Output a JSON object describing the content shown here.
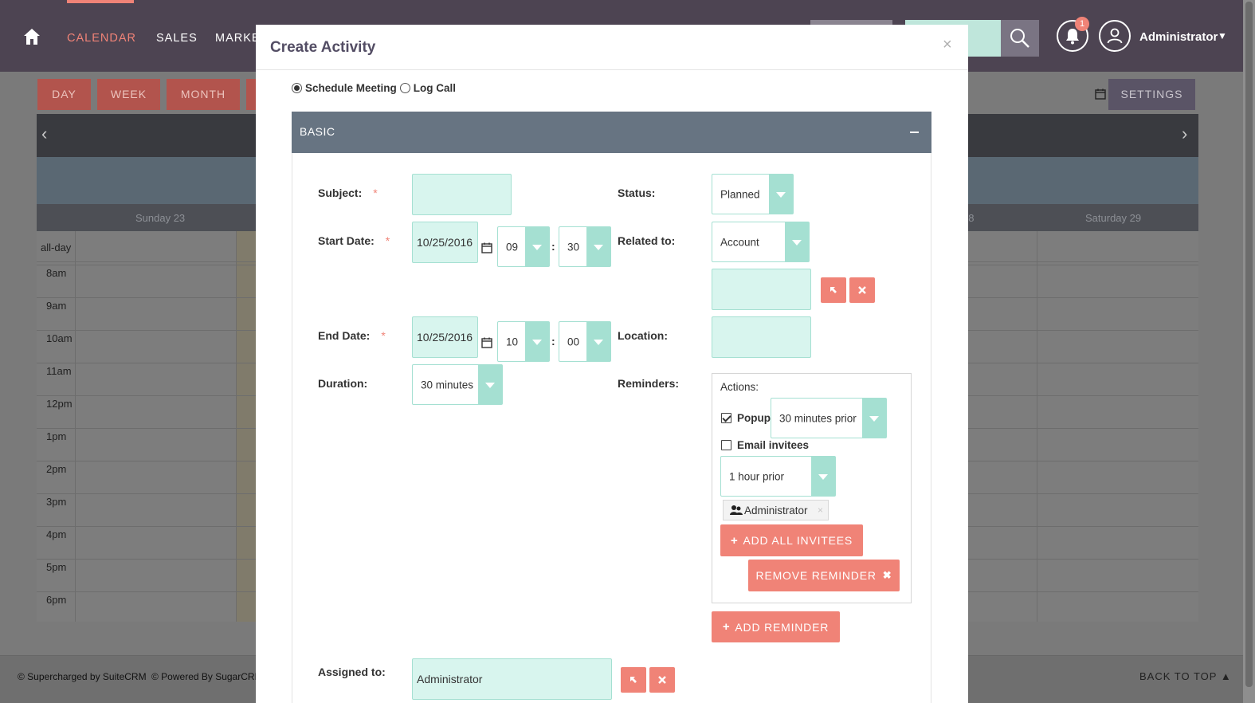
{
  "nav": {
    "items": [
      "CALENDAR",
      "SALES",
      "MARKE"
    ],
    "user": "Administrator",
    "notification_count": "1"
  },
  "calendar": {
    "views": [
      "DAY",
      "WEEK",
      "MONTH"
    ],
    "settings_label": "SETTINGS",
    "days": [
      "Sunday 23",
      "28",
      "Saturday 29"
    ],
    "allday_label": "all-day",
    "hours": [
      "8am",
      "9am",
      "10am",
      "11am",
      "12pm",
      "1pm",
      "2pm",
      "3pm",
      "4pm",
      "5pm",
      "6pm"
    ]
  },
  "footer": {
    "supercharged": "© Supercharged by SuiteCRM",
    "powered": "© Powered By SugarCRM",
    "back_to_top": "BACK TO TOP"
  },
  "modal": {
    "title": "Create Activity",
    "close": "×",
    "radio_meeting": "Schedule Meeting",
    "radio_call": "Log Call",
    "panel_title": "BASIC",
    "labels": {
      "subject": "Subject:",
      "start_date": "Start Date:",
      "end_date": "End Date:",
      "duration": "Duration:",
      "status": "Status:",
      "related_to": "Related to:",
      "location": "Location:",
      "reminders": "Reminders:",
      "assigned_to": "Assigned to:"
    },
    "required_mark": "*",
    "subject_value": "",
    "start_date_value": "10/25/2016",
    "start_hour": "09",
    "start_minute": "30",
    "end_date_value": "10/25/2016",
    "end_hour": "10",
    "end_minute": "00",
    "time_sep": ":",
    "duration_value": "30 minutes",
    "status_value": "Planned",
    "related_type": "Account",
    "related_value": "",
    "location_value": "",
    "reminder": {
      "actions_label": "Actions:",
      "popup_label": "Popup",
      "popup_checked": true,
      "popup_timing": "30 minutes prior",
      "email_label": "Email invitees",
      "email_checked": false,
      "email_timing": "1 hour prior",
      "invitee": "Administrator",
      "invitee_remove": "×",
      "add_all_label": "ADD ALL INVITEES",
      "remove_label": "REMOVE REMINDER"
    },
    "add_reminder_label": "ADD REMINDER",
    "assigned_value": "Administrator"
  },
  "colors": {
    "accent": "#f08377",
    "input_bg": "#d8f5ee",
    "input_border": "#a5e0d2",
    "nav_bg": "#4d4452",
    "panel_head": "#677482"
  }
}
